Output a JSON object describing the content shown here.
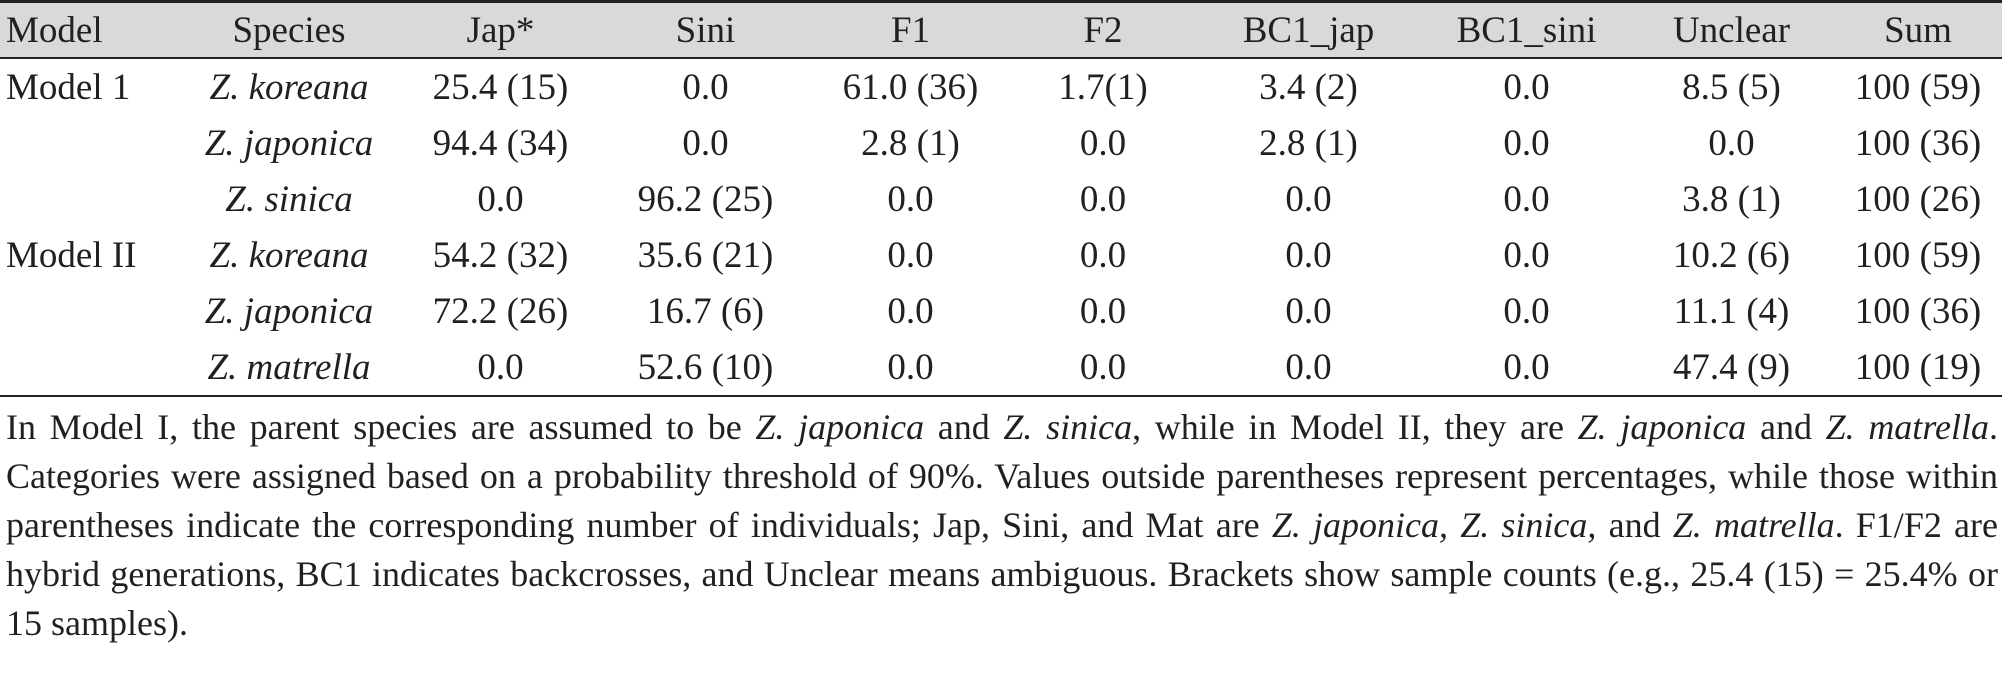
{
  "table": {
    "columns": [
      "Model",
      "Species",
      "Jap*",
      "Sini",
      "F1",
      "F2",
      "BC1_jap",
      "BC1_sini",
      "Unclear",
      "Sum"
    ],
    "rows": [
      [
        "Model 1",
        "Z. koreana",
        "25.4 (15)",
        "0.0",
        "61.0 (36)",
        "1.7(1)",
        "3.4 (2)",
        "0.0",
        "8.5 (5)",
        "100 (59)"
      ],
      [
        null,
        "Z. japonica",
        "94.4 (34)",
        "0.0",
        "2.8 (1)",
        "0.0",
        "2.8 (1)",
        "0.0",
        "0.0",
        "100 (36)"
      ],
      [
        null,
        "Z. sinica",
        "0.0",
        "96.2 (25)",
        "0.0",
        "0.0",
        "0.0",
        "0.0",
        "3.8 (1)",
        "100 (26)"
      ],
      [
        "Model II",
        "Z. koreana",
        "54.2 (32)",
        "35.6 (21)",
        "0.0",
        "0.0",
        "0.0",
        "0.0",
        "10.2 (6)",
        "100 (59)"
      ],
      [
        null,
        "Z. japonica",
        "72.2 (26)",
        "16.7 (6)",
        "0.0",
        "0.0",
        "0.0",
        "0.0",
        "11.1 (4)",
        "100 (36)"
      ],
      [
        null,
        "Z. matrella",
        "0.0",
        "52.6 (10)",
        "0.0",
        "0.0",
        "0.0",
        "0.0",
        "47.4 (9)",
        "100 (19)"
      ]
    ]
  },
  "note": [
    "In Model I, the parent species are assumed to be ",
    "Z. japonica",
    " and ",
    "Z. sinica",
    ", while in Model II, they are ",
    "Z. japonica",
    " and ",
    "Z. matrella",
    ". Categories were assigned based on a probability threshold of 90%. Values outside parentheses represent percentages, while those within parentheses indicate the corresponding number of individuals; Jap, Sini, and Mat are ",
    "Z. japonica, Z. sinica,",
    " and ",
    "Z. matrella",
    ". F1/F2 are hybrid generations, BC1 indicates backcrosses, and Unclear means ambiguous. Brackets show sample counts (e.g., 25.4 (15) = 25.4% or 15 samples)."
  ]
}
